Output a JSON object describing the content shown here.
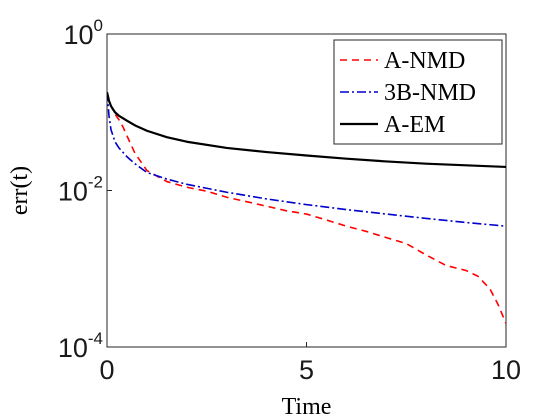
{
  "chart_data": {
    "type": "line",
    "title": "",
    "xlabel": "Time",
    "ylabel": "err(t)",
    "xlim": [
      0,
      10
    ],
    "ylim": [
      0.0001,
      1
    ],
    "yscale": "log",
    "grid": false,
    "legend_position": "top-right",
    "x_ticks": [
      {
        "value": 0,
        "label": "0"
      },
      {
        "value": 5,
        "label": "5"
      },
      {
        "value": 10,
        "label": "10"
      }
    ],
    "y_ticks": [
      {
        "value": 1,
        "base": "10",
        "exp": "0"
      },
      {
        "value": 0.01,
        "base": "10",
        "exp": "-2"
      },
      {
        "value": 0.0001,
        "base": "10",
        "exp": "-4"
      }
    ],
    "series": [
      {
        "name": "A-NMD",
        "color": "#ff0000",
        "dash": "dashed",
        "x": [
          0,
          0.1,
          0.2,
          0.3,
          0.4,
          0.5,
          0.7,
          1.0,
          1.5,
          2.0,
          2.5,
          3.0,
          3.5,
          4.0,
          4.5,
          5.0,
          5.5,
          6.0,
          6.5,
          7.0,
          7.5,
          8.0,
          8.5,
          9.0,
          9.3,
          9.6,
          9.8,
          10.0
        ],
        "y": [
          0.18,
          0.12,
          0.095,
          0.08,
          0.065,
          0.05,
          0.03,
          0.018,
          0.013,
          0.011,
          0.0098,
          0.0082,
          0.0072,
          0.0063,
          0.0055,
          0.005,
          0.0042,
          0.0035,
          0.003,
          0.0025,
          0.0021,
          0.0015,
          0.0011,
          0.00095,
          0.0008,
          0.00055,
          0.00035,
          0.0002
        ]
      },
      {
        "name": "3B-NMD",
        "color": "#0000cc",
        "dash": "dash-dot",
        "x": [
          0,
          0.05,
          0.1,
          0.2,
          0.3,
          0.5,
          0.7,
          1.0,
          1.5,
          2.0,
          3.0,
          4.0,
          5.0,
          6.0,
          7.0,
          8.0,
          9.0,
          10.0
        ],
        "y": [
          0.18,
          0.09,
          0.06,
          0.042,
          0.035,
          0.027,
          0.022,
          0.017,
          0.014,
          0.012,
          0.0095,
          0.0078,
          0.0066,
          0.0057,
          0.005,
          0.0044,
          0.0039,
          0.0035
        ]
      },
      {
        "name": "A-EM",
        "color": "#000000",
        "dash": "solid",
        "x": [
          0,
          0.05,
          0.1,
          0.2,
          0.3,
          0.5,
          0.7,
          1.0,
          1.5,
          2.0,
          3.0,
          4.0,
          5.0,
          6.0,
          7.0,
          8.0,
          9.0,
          10.0
        ],
        "y": [
          0.18,
          0.14,
          0.12,
          0.1,
          0.09,
          0.078,
          0.068,
          0.058,
          0.048,
          0.042,
          0.035,
          0.031,
          0.028,
          0.0255,
          0.0235,
          0.022,
          0.021,
          0.02
        ]
      }
    ]
  }
}
